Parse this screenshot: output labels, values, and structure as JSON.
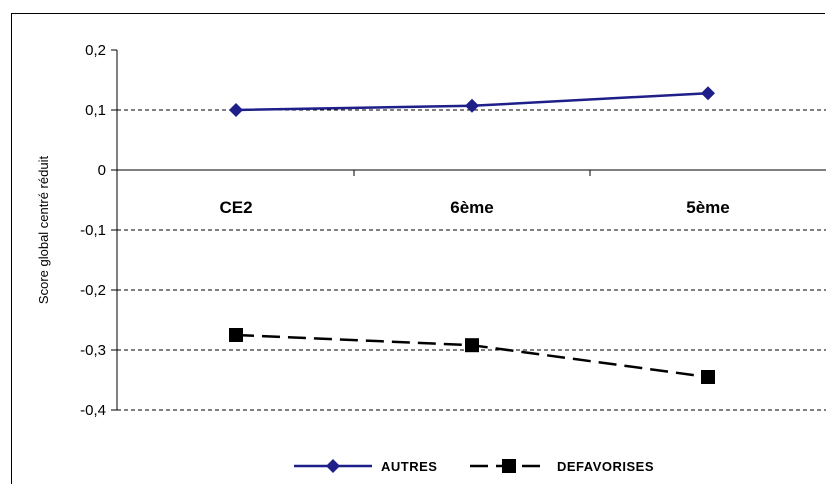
{
  "chart_data": {
    "type": "line",
    "categories": [
      "CE2",
      "6ème",
      "5ème"
    ],
    "ylabel": "Score global centré réduit",
    "ylim": [
      -0.4,
      0.2
    ],
    "y_ticks": [
      "0,2",
      "0,1",
      "0",
      "-0,1",
      "-0,2",
      "-0,3",
      "-0,4"
    ],
    "y_tick_values": [
      0.2,
      0.1,
      0,
      -0.1,
      -0.2,
      -0.3,
      -0.4
    ],
    "grid": "dashed horizontal",
    "legend_position": "bottom",
    "series": [
      {
        "name": "AUTRES",
        "values": [
          0.1,
          0.107,
          0.128
        ],
        "color": "#1f1f8a",
        "marker": "diamond",
        "line": "solid"
      },
      {
        "name": "DEFAVORISES",
        "values": [
          -0.275,
          -0.292,
          -0.345
        ],
        "color": "#000000",
        "marker": "square",
        "line": "dashed"
      }
    ]
  }
}
